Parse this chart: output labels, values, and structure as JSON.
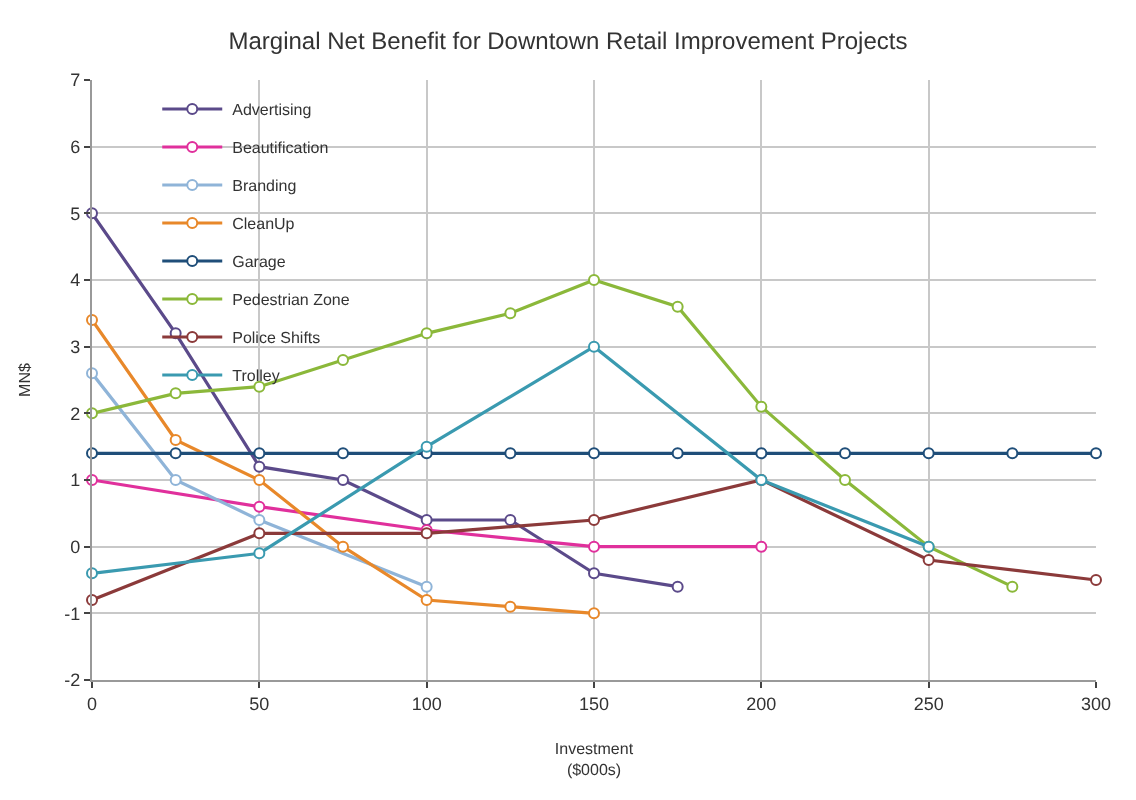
{
  "chart_data": {
    "type": "line",
    "title": "Marginal Net Benefit for Downtown Retail Improvement Projects",
    "xlabel": "Investment\n($000s)",
    "ylabel": "MN$",
    "series": [
      {
        "name": "Advertising",
        "color": "#5b4a8a",
        "x": [
          0,
          25,
          50,
          75,
          100,
          125,
          150,
          175
        ],
        "values": [
          5.0,
          3.2,
          1.2,
          1.0,
          0.4,
          0.4,
          -0.4,
          -0.6
        ]
      },
      {
        "name": "Beautification",
        "color": "#e0309c",
        "x": [
          0,
          50,
          100,
          150,
          200
        ],
        "values": [
          1.0,
          0.6,
          0.25,
          0.0,
          0.0
        ]
      },
      {
        "name": "Branding",
        "color": "#8fb4d8",
        "x": [
          0,
          25,
          50,
          100
        ],
        "values": [
          2.6,
          1.0,
          0.4,
          -0.6
        ]
      },
      {
        "name": "CleanUp",
        "color": "#e8882a",
        "x": [
          0,
          25,
          50,
          75,
          100,
          125,
          150
        ],
        "values": [
          3.4,
          1.6,
          1.0,
          0.0,
          -0.8,
          -0.9,
          -1.0
        ]
      },
      {
        "name": "Garage",
        "color": "#1f4e79",
        "x": [
          0,
          25,
          50,
          75,
          100,
          125,
          150,
          175,
          200,
          225,
          250,
          275,
          300
        ],
        "values": [
          1.4,
          1.4,
          1.4,
          1.4,
          1.4,
          1.4,
          1.4,
          1.4,
          1.4,
          1.4,
          1.4,
          1.4,
          1.4
        ]
      },
      {
        "name": "Pedestrian Zone",
        "color": "#8bb83a",
        "x": [
          0,
          25,
          50,
          75,
          100,
          125,
          150,
          175,
          200,
          225,
          250,
          275
        ],
        "values": [
          2.0,
          2.3,
          2.4,
          2.8,
          3.2,
          3.5,
          4.0,
          3.6,
          2.1,
          1.0,
          0.0,
          -0.6
        ]
      },
      {
        "name": "Police Shifts",
        "color": "#8b3a3a",
        "x": [
          0,
          50,
          100,
          150,
          200,
          250,
          300
        ],
        "values": [
          -0.8,
          0.2,
          0.2,
          0.4,
          1.0,
          -0.2,
          -0.5
        ]
      },
      {
        "name": "Trolley",
        "color": "#3a9ab0",
        "x": [
          0,
          50,
          100,
          150,
          200,
          250
        ],
        "values": [
          -0.4,
          -0.1,
          1.5,
          3.0,
          1.0,
          0.0
        ]
      }
    ],
    "xlim": [
      0,
      300
    ],
    "xticks": [
      0,
      50,
      100,
      150,
      200,
      250,
      300
    ],
    "ylim": [
      -2,
      7
    ],
    "yticks": [
      -2,
      -1,
      0,
      1,
      2,
      3,
      4,
      5,
      6,
      7
    ],
    "grid": true,
    "legend": "top left",
    "marker": "circle",
    "line_style": "solid"
  }
}
